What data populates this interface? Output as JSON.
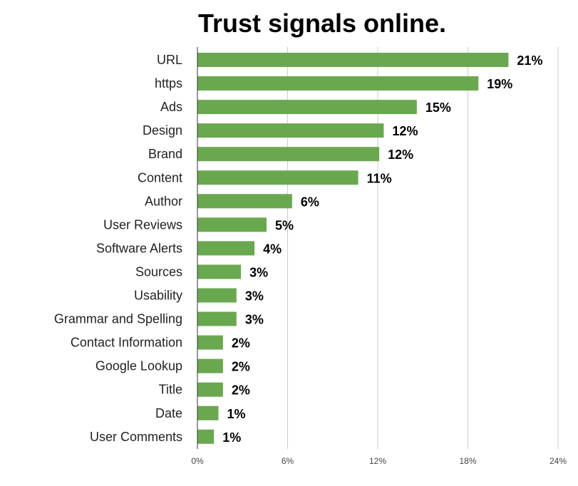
{
  "chart_data": {
    "type": "bar",
    "orientation": "horizontal",
    "title": "Trust signals online.",
    "categories": [
      "URL",
      "https",
      "Ads",
      "Design",
      "Brand",
      "Content",
      "Author",
      "User Reviews",
      "Software Alerts",
      "Sources",
      "Usability",
      "Grammar and Spelling",
      "Contact Information",
      "Google Lookup",
      "Title",
      "Date",
      "User Comments"
    ],
    "values": [
      20.7,
      18.7,
      14.6,
      12.4,
      12.1,
      10.7,
      6.3,
      4.6,
      3.8,
      2.9,
      2.6,
      2.6,
      1.7,
      1.7,
      1.7,
      1.4,
      1.1
    ],
    "value_labels": [
      "21%",
      "19%",
      "15%",
      "12%",
      "12%",
      "11%",
      "6%",
      "5%",
      "4%",
      "3%",
      "3%",
      "3%",
      "2%",
      "2%",
      "2%",
      "1%",
      "1%"
    ],
    "xlim": [
      0,
      24
    ],
    "xticks": [
      0,
      6,
      12,
      18,
      24
    ],
    "xtick_labels": [
      "0%",
      "6%",
      "12%",
      "18%",
      "24%"
    ],
    "xlabel": "",
    "ylabel": "",
    "grid": true,
    "legend": "none",
    "bar_color": "#6aa84f",
    "grid_color": "#cccccc"
  }
}
